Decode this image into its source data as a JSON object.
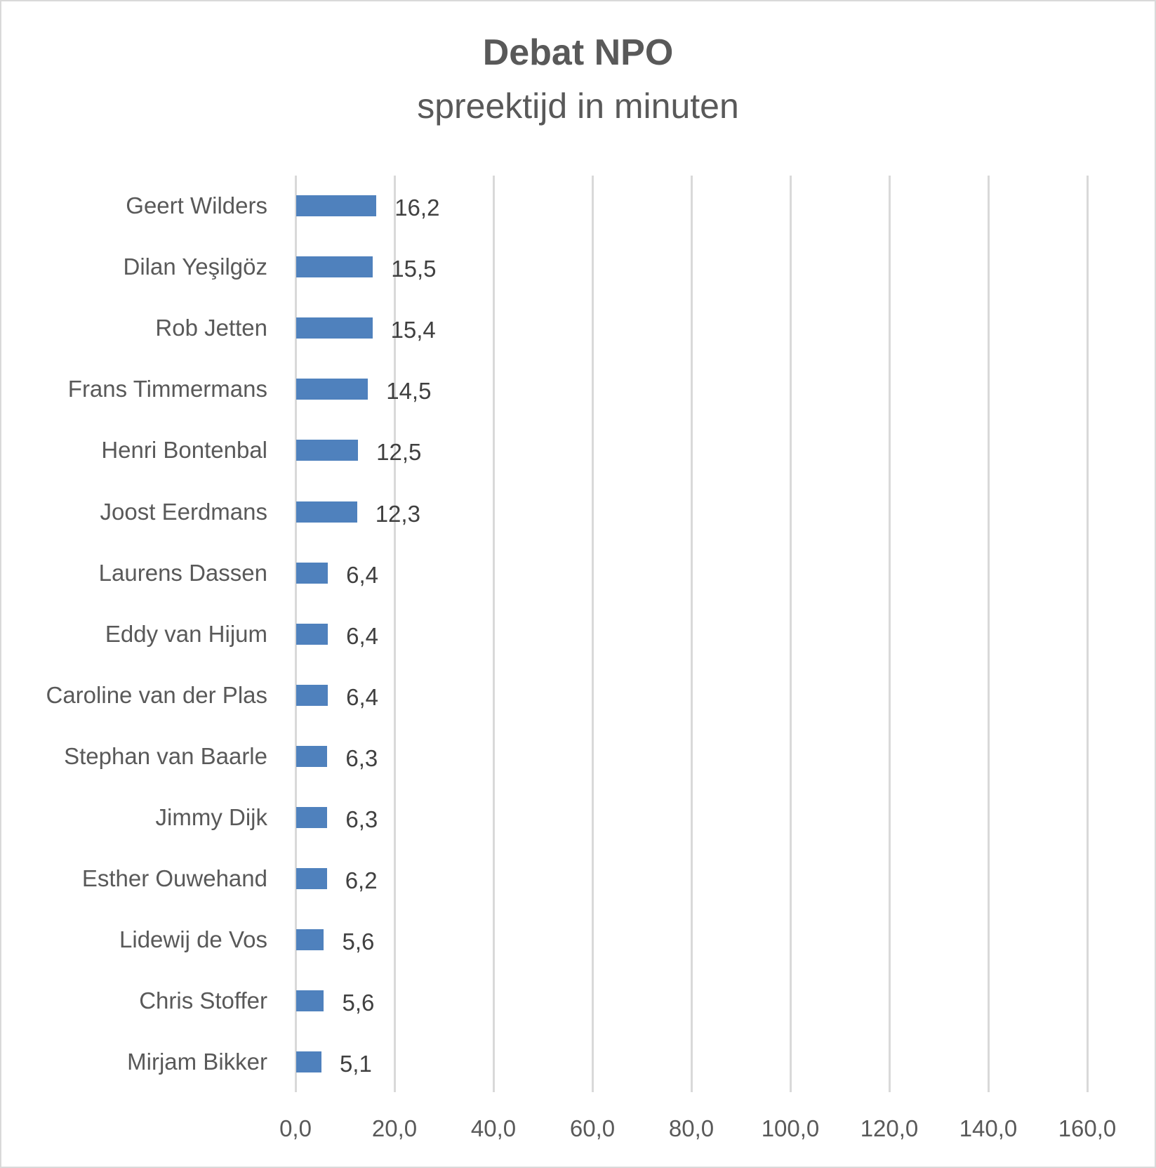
{
  "chart_data": {
    "type": "bar",
    "orientation": "horizontal",
    "title": "Debat NPO",
    "subtitle": "spreektijd in minuten",
    "xlabel": "",
    "ylabel": "",
    "categories": [
      "Geert Wilders",
      "Dilan Yeşilgöz",
      "Rob Jetten",
      "Frans Timmermans",
      "Henri Bontenbal",
      "Joost Eerdmans",
      "Laurens Dassen",
      "Eddy van Hijum",
      "Caroline van der Plas",
      "Stephan van Baarle",
      "Jimmy Dijk",
      "Esther Ouwehand",
      "Lidewij de Vos",
      "Chris Stoffer",
      "Mirjam Bikker"
    ],
    "values": [
      16.2,
      15.5,
      15.4,
      14.5,
      12.5,
      12.3,
      6.4,
      6.4,
      6.4,
      6.3,
      6.3,
      6.2,
      5.6,
      5.6,
      5.1
    ],
    "value_labels": [
      "16,2",
      "15,5",
      "15,4",
      "14,5",
      "12,5",
      "12,3",
      "6,4",
      "6,4",
      "6,4",
      "6,3",
      "6,3",
      "6,2",
      "5,6",
      "5,6",
      "5,1"
    ],
    "xlim": [
      0,
      160
    ],
    "x_ticks": [
      0,
      20,
      40,
      60,
      80,
      100,
      120,
      140,
      160
    ],
    "x_tick_labels": [
      "0,0",
      "20,0",
      "40,0",
      "60,0",
      "80,0",
      "100,0",
      "120,0",
      "140,0",
      "160,0"
    ],
    "grid": "vertical",
    "legend": "none",
    "bar_color": "#4F81BD"
  },
  "header": {
    "title": "Debat NPO",
    "subtitle": "spreektijd in minuten"
  }
}
